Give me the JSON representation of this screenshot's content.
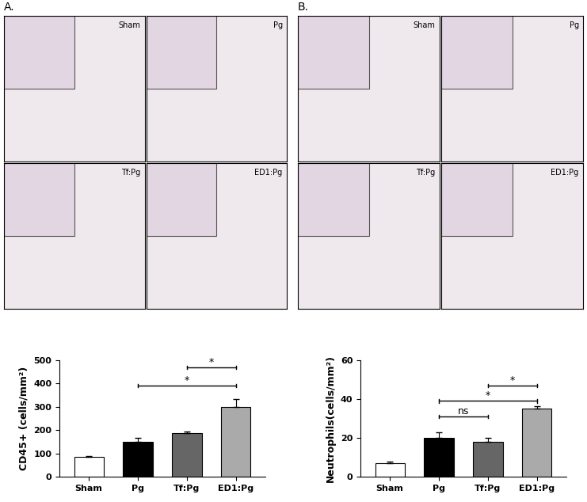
{
  "panels": [
    {
      "label": "A.",
      "images": [
        "Sham",
        "Pg",
        "Tf:Pg",
        "ED1:Pg"
      ]
    },
    {
      "label": "B.",
      "images": [
        "Sham",
        "Pg",
        "Tf:Pg",
        "ED1:Pg"
      ]
    }
  ],
  "chart_data": [
    {
      "type": "bar",
      "y_label": "CD45+ (cells/mm²)",
      "categories": [
        "Sham",
        "Pg",
        "Tf:Pg",
        "ED1:Pg"
      ],
      "values": [
        85,
        150,
        188,
        300
      ],
      "errors": [
        5,
        15,
        5,
        33
      ],
      "colors": [
        "#ffffff",
        "#000000",
        "#666666",
        "#aaaaaa"
      ],
      "ylim": [
        0,
        500
      ],
      "yticks": [
        0,
        100,
        200,
        300,
        400,
        500
      ],
      "comparisons": [
        {
          "from": "Tf:Pg",
          "to": "ED1:Pg",
          "label": "*",
          "y": 469
        },
        {
          "from": "Pg",
          "to": "ED1:Pg",
          "label": "*",
          "y": 392
        }
      ]
    },
    {
      "type": "bar",
      "y_label": "Neutrophils(cells/mm²)",
      "categories": [
        "Sham",
        "Pg",
        "Tf:Pg",
        "ED1:Pg"
      ],
      "values": [
        7,
        20,
        18,
        35
      ],
      "errors": [
        0.7,
        3,
        2,
        1.5
      ],
      "colors": [
        "#ffffff",
        "#000000",
        "#666666",
        "#aaaaaa"
      ],
      "ylim": [
        0,
        60
      ],
      "yticks": [
        0,
        20,
        40,
        60
      ],
      "comparisons": [
        {
          "from": "Tf:Pg",
          "to": "ED1:Pg",
          "label": "*",
          "y": 47
        },
        {
          "from": "Pg",
          "to": "ED1:Pg",
          "label": "*",
          "y": 39
        },
        {
          "from": "Pg",
          "to": "Tf:Pg",
          "label": "ns",
          "y": 31
        }
      ]
    }
  ]
}
